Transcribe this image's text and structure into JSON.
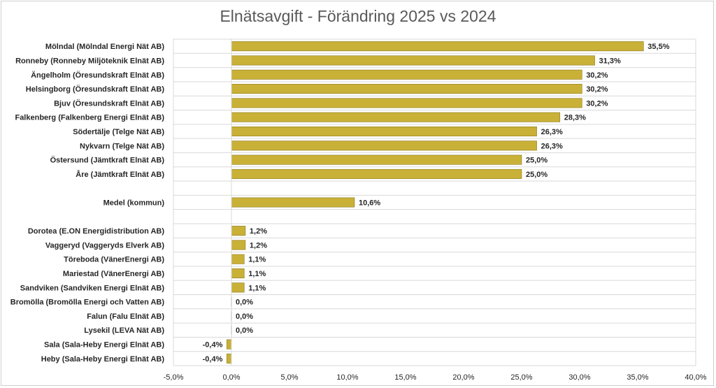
{
  "chart_data": {
    "type": "bar",
    "orientation": "horizontal",
    "title": "Elnätsavgift - Förändring 2025 vs 2024",
    "xlim": [
      -5.0,
      40.0
    ],
    "x_ticks": [
      -5,
      0,
      5,
      10,
      15,
      20,
      25,
      30,
      35,
      40
    ],
    "x_tick_labels": [
      "-5,0%",
      "0,0%",
      "5,0%",
      "10,0%",
      "15,0%",
      "20,0%",
      "25,0%",
      "30,0%",
      "35,0%",
      "40,0%"
    ],
    "grid": "horizontal",
    "bar_color": "#C9B037",
    "categories": [
      "Mölndal (Mölndal Energi Nät AB)",
      "Ronneby (Ronneby Miljöteknik Elnät AB)",
      "Ängelholm (Öresundskraft Elnät AB)",
      "Helsingborg (Öresundskraft Elnät AB)",
      "Bjuv (Öresundskraft Elnät AB)",
      "Falkenberg (Falkenberg Energi Elnät AB)",
      "Södertälje (Telge Nät AB)",
      "Nykvarn (Telge Nät AB)",
      "Östersund (Jämtkraft Elnät AB)",
      "Åre (Jämtkraft Elnät AB)",
      "",
      "Medel (kommun)",
      "",
      "Dorotea (E.ON Energidistribution AB)",
      "Vaggeryd (Vaggeryds Elverk AB)",
      "Töreboda (VänerEnergi AB)",
      "Mariestad (VänerEnergi AB)",
      "Sandviken (Sandviken Energi Elnät AB)",
      "Bromölla (Bromölla Energi och Vatten AB)",
      "Falun (Falu Elnät AB)",
      "Lysekil (LEVA Nät AB)",
      "Sala (Sala-Heby Energi Elnät AB)",
      "Heby (Sala-Heby Energi Elnät AB)"
    ],
    "values": [
      35.5,
      31.3,
      30.2,
      30.2,
      30.2,
      28.3,
      26.3,
      26.3,
      25.0,
      25.0,
      null,
      10.6,
      null,
      1.2,
      1.2,
      1.1,
      1.1,
      1.1,
      0.0,
      0.0,
      0.0,
      -0.4,
      -0.4
    ],
    "value_labels": [
      "35,5%",
      "31,3%",
      "30,2%",
      "30,2%",
      "30,2%",
      "28,3%",
      "26,3%",
      "26,3%",
      "25,0%",
      "25,0%",
      "",
      "10,6%",
      "",
      "1,2%",
      "1,2%",
      "1,1%",
      "1,1%",
      "1,1%",
      "0,0%",
      "0,0%",
      "0,0%",
      "-0,4%",
      "-0,4%"
    ]
  }
}
